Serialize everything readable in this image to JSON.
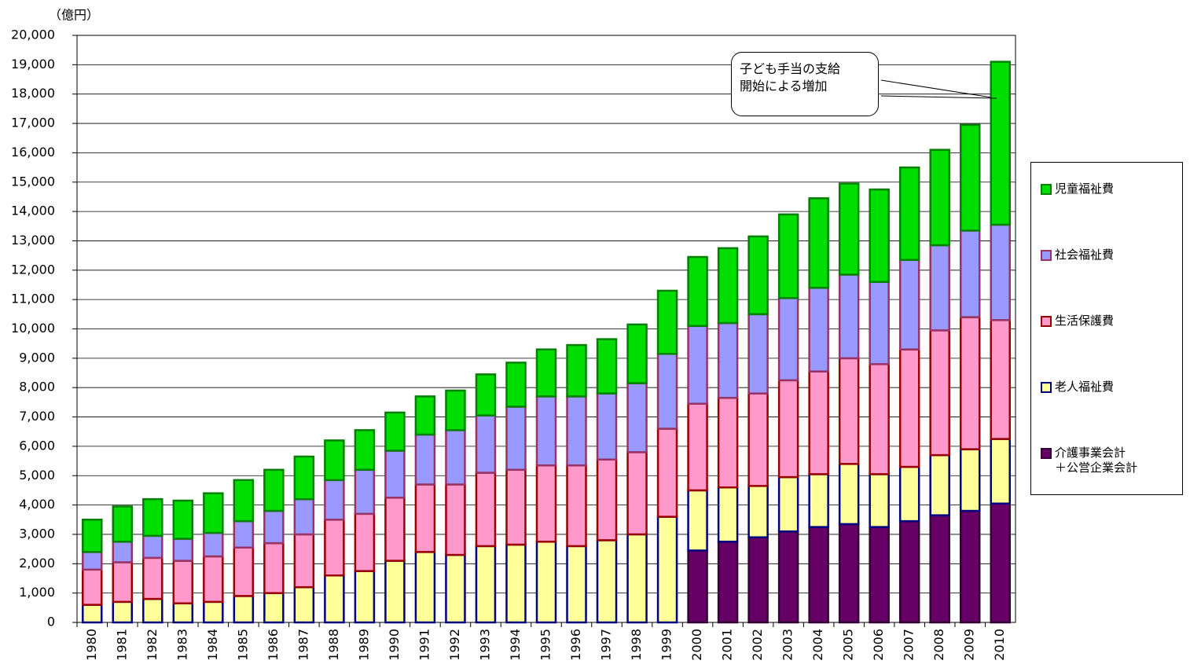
{
  "chart_data": {
    "type": "stacked_bar",
    "unit_label": "（億円）",
    "annotation": "子ども手当の支給\n開始による増加",
    "categories": [
      "1980",
      "1981",
      "1982",
      "1983",
      "1984",
      "1985",
      "1986",
      "1987",
      "1988",
      "1989",
      "1990",
      "1991",
      "1992",
      "1993",
      "1994",
      "1995",
      "1996",
      "1997",
      "1998",
      "1999",
      "2000",
      "2001",
      "2002",
      "2003",
      "2004",
      "2005",
      "2006",
      "2007",
      "2008",
      "2009",
      "2010"
    ],
    "ylim": [
      0,
      20000
    ],
    "yticks": [
      0,
      {
        "value": 1000,
        "label": "1,000"
      },
      {
        "value": 2000,
        "label": "2,000"
      },
      {
        "value": 3000,
        "label": "3,000"
      },
      {
        "value": 4000,
        "label": "4,000"
      },
      {
        "value": 5000,
        "label": "5,000"
      },
      {
        "value": 6000,
        "label": "6,000"
      },
      {
        "value": 7000,
        "label": "7,000"
      },
      {
        "value": 8000,
        "label": "8,000"
      },
      {
        "value": 9000,
        "label": "9,000"
      },
      {
        "value": 10000,
        "label": "10,000"
      },
      {
        "value": 11000,
        "label": "11,000"
      },
      {
        "value": 12000,
        "label": "12,000"
      },
      {
        "value": 13000,
        "label": "13,000"
      },
      {
        "value": 14000,
        "label": "14,000"
      },
      {
        "value": 15000,
        "label": "15,000"
      },
      {
        "value": 16000,
        "label": "16,000"
      },
      {
        "value": 17000,
        "label": "17,000"
      },
      {
        "value": 18000,
        "label": "18,000"
      },
      {
        "value": 19000,
        "label": "19,000"
      },
      {
        "value": 20000,
        "label": "20,000"
      }
    ],
    "grid": true,
    "legend_position": "right",
    "series": [
      {
        "name": "介護事業会計\n＋公営企業会計",
        "color": "#660066",
        "edgecolor": "#330033",
        "values": [
          null,
          null,
          null,
          null,
          null,
          null,
          null,
          null,
          null,
          null,
          null,
          null,
          null,
          null,
          null,
          null,
          null,
          null,
          null,
          null,
          2450,
          2750,
          2900,
          3100,
          3250,
          3350,
          3250,
          3450,
          3650,
          3800,
          4050
        ]
      },
      {
        "name": "老人福祉費",
        "color": "#ffff99",
        "edgecolor": "#000080",
        "values": [
          600,
          700,
          800,
          650,
          700,
          900,
          1000,
          1200,
          1600,
          1750,
          2100,
          2400,
          2300,
          2600,
          2650,
          2750,
          2600,
          2800,
          3000,
          3600,
          2050,
          1850,
          1750,
          1850,
          1800,
          2050,
          1800,
          1850,
          2050,
          2100,
          2200
        ]
      },
      {
        "name": "生活保護費",
        "color": "#ff99cc",
        "edgecolor": "#990000",
        "values": [
          1200,
          1350,
          1400,
          1450,
          1550,
          1650,
          1700,
          1800,
          1900,
          1950,
          2150,
          2300,
          2400,
          2500,
          2550,
          2600,
          2750,
          2750,
          2800,
          3000,
          2950,
          3050,
          3150,
          3300,
          3500,
          3600,
          3750,
          4000,
          4250,
          4500,
          4050
        ]
      },
      {
        "name": "社会福祉費",
        "color": "#9999ff",
        "edgecolor": "#993366",
        "values": [
          600,
          700,
          750,
          750,
          800,
          900,
          1100,
          1200,
          1350,
          1500,
          1600,
          1700,
          1850,
          1950,
          2150,
          2350,
          2350,
          2250,
          2350,
          2550,
          2650,
          2550,
          2700,
          2800,
          2850,
          2850,
          2800,
          3050,
          2900,
          2950,
          3250
        ]
      },
      {
        "name": "児童福祉費",
        "color": "#00dd00",
        "edgecolor": "#008000",
        "values": [
          1100,
          1200,
          1250,
          1300,
          1350,
          1400,
          1400,
          1450,
          1350,
          1350,
          1300,
          1300,
          1350,
          1400,
          1500,
          1600,
          1750,
          1850,
          2000,
          2150,
          2350,
          2550,
          2650,
          2850,
          3050,
          3100,
          3150,
          3150,
          3250,
          3600,
          5550
        ]
      }
    ]
  }
}
